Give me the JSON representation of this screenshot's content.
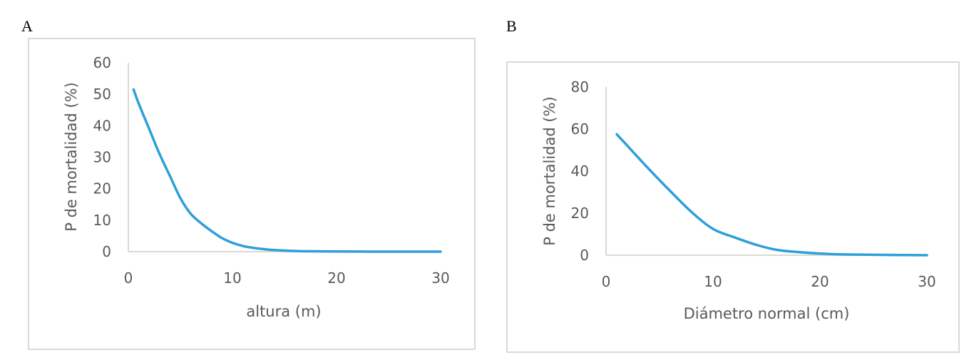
{
  "chart_data": [
    {
      "panel_label": "A",
      "type": "line",
      "xlabel": "altura (m)",
      "ylabel": "P de mortalidad (%)",
      "xlim": [
        0,
        30
      ],
      "ylim": [
        0,
        60
      ],
      "x_ticks": [
        0,
        10,
        20,
        30
      ],
      "y_ticks": [
        0,
        10,
        20,
        30,
        40,
        50,
        60
      ],
      "grid": false,
      "series": [
        {
          "color": "#2e9fd8",
          "x": [
            0.5,
            1,
            2,
            3,
            4,
            5,
            6,
            7,
            8,
            9,
            10,
            11,
            12,
            13,
            14,
            16,
            18,
            20,
            25,
            30
          ],
          "y": [
            51.5,
            47,
            39,
            31,
            24,
            17,
            12,
            9,
            6.5,
            4.3,
            2.8,
            1.8,
            1.2,
            0.8,
            0.5,
            0.2,
            0.1,
            0.05,
            0,
            0
          ]
        }
      ]
    },
    {
      "panel_label": "B",
      "type": "line",
      "xlabel": "Diámetro normal (cm)",
      "ylabel": "P de mortalidad (%)",
      "xlim": [
        0,
        30
      ],
      "ylim": [
        0,
        80
      ],
      "x_ticks": [
        0,
        10,
        20,
        30
      ],
      "y_ticks": [
        0,
        20,
        40,
        60,
        80
      ],
      "grid": false,
      "series": [
        {
          "color": "#2e9fd8",
          "x": [
            1,
            2,
            4,
            6,
            8,
            10,
            12,
            14,
            16,
            18,
            20,
            22,
            25,
            30
          ],
          "y": [
            57.5,
            52,
            41,
            30.5,
            20.5,
            12.5,
            8.5,
            5,
            2.5,
            1.5,
            0.8,
            0.4,
            0.2,
            0
          ]
        }
      ]
    }
  ]
}
